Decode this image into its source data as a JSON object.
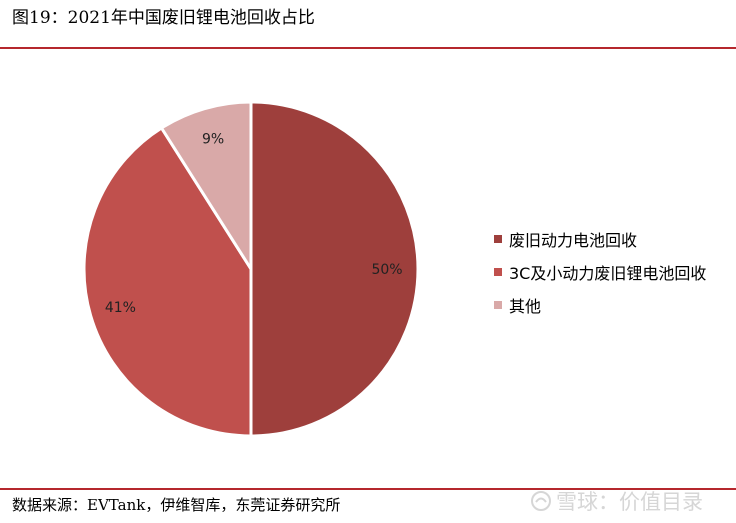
{
  "header": {
    "title": "图19：2021年中国废旧锂电池回收占比"
  },
  "chart_data": {
    "type": "pie",
    "title": "图19：2021年中国废旧锂电池回收占比",
    "slices": [
      {
        "label": "废旧动力电池回收",
        "value": 50,
        "display": "50%",
        "color": "#9e3f3c"
      },
      {
        "label": "3C及小动力废旧锂电池回收",
        "value": 41,
        "display": "41%",
        "color": "#c0504d"
      },
      {
        "label": "其他",
        "value": 9,
        "display": "9%",
        "color": "#d9a9a8"
      }
    ],
    "legend_position": "right",
    "start_angle_deg": 0,
    "direction": "clockwise"
  },
  "footer": {
    "source": "数据来源：EVTank，伊维智库，东莞证券研究所"
  },
  "watermark": {
    "text": "雪球：价值目录",
    "icon": "snowball-logo-icon"
  }
}
